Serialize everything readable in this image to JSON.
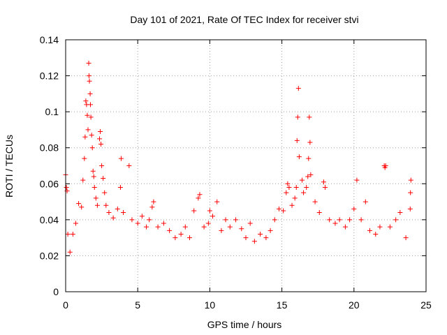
{
  "chart_data": {
    "type": "scatter",
    "title": "Day 101 of 2021, Rate Of TEC Index for receiver stvi",
    "xlabel": "GPS time / hours",
    "ylabel": "ROTI / TECUs",
    "xlim": [
      0,
      25
    ],
    "ylim": [
      0,
      0.14
    ],
    "x_ticks": [
      "0",
      "5",
      "10",
      "15",
      "20",
      "25"
    ],
    "y_ticks": [
      "0",
      "0.02",
      "0.04",
      "0.06",
      "0.08",
      "0.1",
      "0.12",
      "0.14"
    ],
    "x_tick_values": [
      0,
      5,
      10,
      15,
      20,
      25
    ],
    "y_tick_values": [
      0,
      0.02,
      0.04,
      0.06,
      0.08,
      0.1,
      0.12,
      0.14
    ],
    "grid": true,
    "marker": "+",
    "color": "#ff0000",
    "series": [
      {
        "points": [
          [
            0.0,
            0.065
          ],
          [
            0.05,
            0.058
          ],
          [
            0.1,
            0.056
          ],
          [
            0.15,
            0.032
          ],
          [
            0.3,
            0.022
          ],
          [
            0.5,
            0.032
          ],
          [
            0.7,
            0.038
          ],
          [
            0.9,
            0.049
          ],
          [
            1.1,
            0.047
          ],
          [
            1.2,
            0.062
          ],
          [
            1.3,
            0.074
          ],
          [
            1.35,
            0.086
          ],
          [
            1.4,
            0.106
          ],
          [
            1.45,
            0.104
          ],
          [
            1.5,
            0.098
          ],
          [
            1.55,
            0.09
          ],
          [
            1.6,
            0.127
          ],
          [
            1.62,
            0.12
          ],
          [
            1.65,
            0.117
          ],
          [
            1.7,
            0.11
          ],
          [
            1.72,
            0.104
          ],
          [
            1.75,
            0.097
          ],
          [
            1.8,
            0.087
          ],
          [
            1.85,
            0.08
          ],
          [
            1.9,
            0.067
          ],
          [
            1.95,
            0.064
          ],
          [
            2.0,
            0.058
          ],
          [
            2.1,
            0.052
          ],
          [
            2.2,
            0.048
          ],
          [
            2.35,
            0.085
          ],
          [
            2.4,
            0.089
          ],
          [
            2.45,
            0.082
          ],
          [
            2.5,
            0.07
          ],
          [
            2.6,
            0.063
          ],
          [
            2.7,
            0.055
          ],
          [
            2.8,
            0.048
          ],
          [
            3.0,
            0.044
          ],
          [
            3.3,
            0.041
          ],
          [
            3.6,
            0.046
          ],
          [
            3.8,
            0.058
          ],
          [
            3.85,
            0.074
          ],
          [
            4.0,
            0.044
          ],
          [
            4.4,
            0.07
          ],
          [
            4.6,
            0.04
          ],
          [
            5.0,
            0.038
          ],
          [
            5.3,
            0.042
          ],
          [
            5.6,
            0.036
          ],
          [
            5.8,
            0.04
          ],
          [
            6.0,
            0.047
          ],
          [
            6.1,
            0.05
          ],
          [
            6.4,
            0.036
          ],
          [
            6.8,
            0.038
          ],
          [
            7.2,
            0.034
          ],
          [
            7.6,
            0.03
          ],
          [
            8.0,
            0.032
          ],
          [
            8.3,
            0.036
          ],
          [
            8.6,
            0.03
          ],
          [
            8.9,
            0.045
          ],
          [
            9.2,
            0.052
          ],
          [
            9.3,
            0.054
          ],
          [
            9.6,
            0.036
          ],
          [
            9.9,
            0.038
          ],
          [
            10.0,
            0.045
          ],
          [
            10.2,
            0.042
          ],
          [
            10.5,
            0.05
          ],
          [
            10.8,
            0.034
          ],
          [
            11.1,
            0.04
          ],
          [
            11.4,
            0.036
          ],
          [
            11.8,
            0.04
          ],
          [
            12.2,
            0.035
          ],
          [
            12.5,
            0.03
          ],
          [
            12.8,
            0.038
          ],
          [
            13.1,
            0.028
          ],
          [
            13.5,
            0.032
          ],
          [
            13.9,
            0.03
          ],
          [
            14.2,
            0.034
          ],
          [
            14.5,
            0.04
          ],
          [
            14.8,
            0.046
          ],
          [
            15.1,
            0.045
          ],
          [
            15.3,
            0.055
          ],
          [
            15.4,
            0.06
          ],
          [
            15.5,
            0.058
          ],
          [
            15.7,
            0.048
          ],
          [
            15.9,
            0.052
          ],
          [
            16.0,
            0.058
          ],
          [
            16.05,
            0.084
          ],
          [
            16.1,
            0.097
          ],
          [
            16.15,
            0.113
          ],
          [
            16.2,
            0.075
          ],
          [
            16.4,
            0.062
          ],
          [
            16.5,
            0.055
          ],
          [
            16.7,
            0.058
          ],
          [
            16.8,
            0.064
          ],
          [
            16.85,
            0.074
          ],
          [
            16.9,
            0.097
          ],
          [
            16.95,
            0.083
          ],
          [
            17.0,
            0.065
          ],
          [
            17.3,
            0.05
          ],
          [
            17.6,
            0.044
          ],
          [
            17.9,
            0.061
          ],
          [
            18.0,
            0.058
          ],
          [
            18.3,
            0.04
          ],
          [
            18.7,
            0.038
          ],
          [
            19.0,
            0.04
          ],
          [
            19.4,
            0.036
          ],
          [
            19.7,
            0.04
          ],
          [
            20.0,
            0.046
          ],
          [
            20.2,
            0.062
          ],
          [
            20.5,
            0.04
          ],
          [
            20.8,
            0.05
          ],
          [
            21.1,
            0.034
          ],
          [
            21.5,
            0.032
          ],
          [
            21.8,
            0.036
          ],
          [
            22.1,
            0.07
          ],
          [
            22.15,
            0.069
          ],
          [
            22.2,
            0.07
          ],
          [
            22.5,
            0.036
          ],
          [
            22.9,
            0.04
          ],
          [
            23.2,
            0.044
          ],
          [
            23.6,
            0.03
          ],
          [
            23.9,
            0.046
          ],
          [
            23.92,
            0.055
          ],
          [
            23.95,
            0.062
          ]
        ]
      }
    ]
  }
}
